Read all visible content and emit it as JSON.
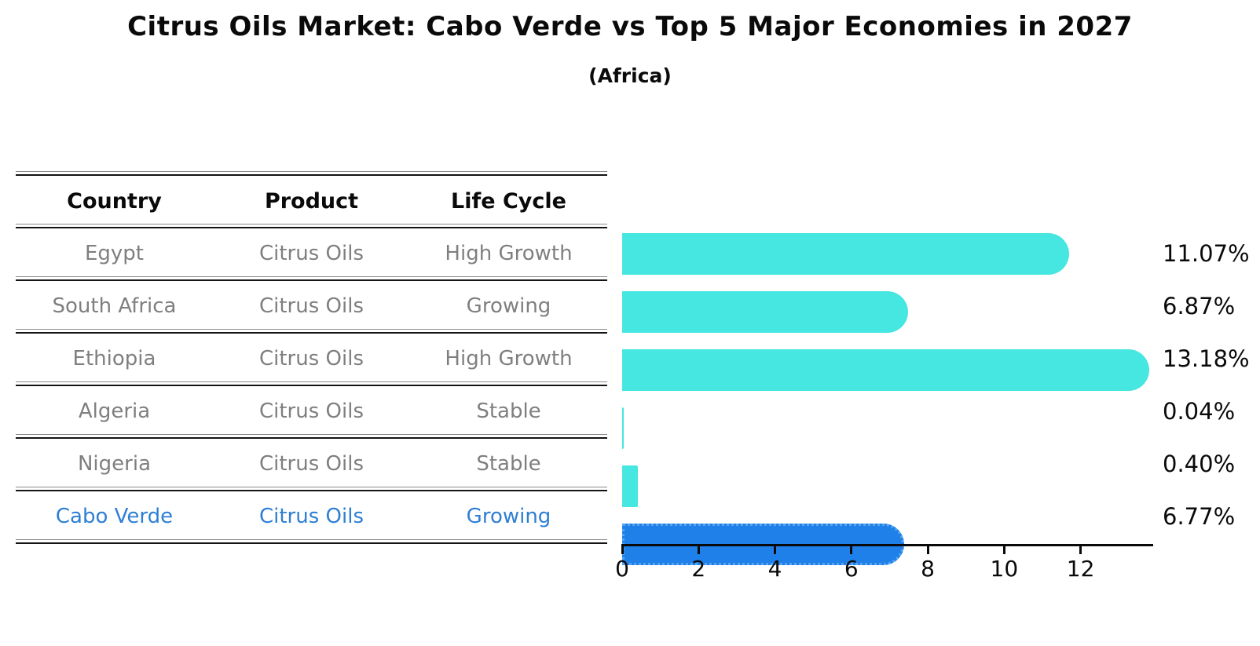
{
  "chart_data": {
    "type": "bar",
    "orientation": "horizontal",
    "title": "Citrus Oils Market: Cabo Verde vs Top 5 Major Economies in 2027",
    "subtitle": "(Africa)",
    "categories": [
      "Egypt",
      "South Africa",
      "Ethiopia",
      "Algeria",
      "Nigeria",
      "Cabo Verde"
    ],
    "values": [
      11.07,
      6.87,
      13.18,
      0.04,
      0.4,
      6.77
    ],
    "value_labels": [
      "11.07%",
      "6.87%",
      "13.18%",
      "0.04%",
      "0.40%",
      "6.77%"
    ],
    "xlabel": "",
    "ylabel": "",
    "xlim": [
      0,
      13.9
    ],
    "xticks": [
      0,
      2,
      4,
      6,
      8,
      10,
      12
    ],
    "xtick_labels": [
      "0",
      "2",
      "4",
      "6",
      "8",
      "10",
      "12"
    ],
    "grid": false,
    "legend": false,
    "bar_color": "#46e6e1",
    "highlight_index": 5,
    "highlight_color": "#1e80e8",
    "highlight_border_color": "#55a4f1"
  },
  "table": {
    "headers": [
      "Country",
      "Product",
      "Life Cycle"
    ],
    "rows": [
      {
        "country": "Egypt",
        "product": "Citrus Oils",
        "life_cycle": "High Growth",
        "highlight": false
      },
      {
        "country": "South Africa",
        "product": "Citrus Oils",
        "life_cycle": "Growing",
        "highlight": false
      },
      {
        "country": "Ethiopia",
        "product": "Citrus Oils",
        "life_cycle": "High Growth",
        "highlight": false
      },
      {
        "country": "Algeria",
        "product": "Citrus Oils",
        "life_cycle": "Stable",
        "highlight": false
      },
      {
        "country": "Nigeria",
        "product": "Citrus Oils",
        "life_cycle": "Stable",
        "highlight": false
      },
      {
        "country": "Cabo Verde",
        "product": "Citrus Oils",
        "life_cycle": "Growing",
        "highlight": true
      }
    ],
    "text_color": "#7f7f7f",
    "header_color": "#0a0a0a",
    "highlight_text_color": "#2e7fd4"
  }
}
